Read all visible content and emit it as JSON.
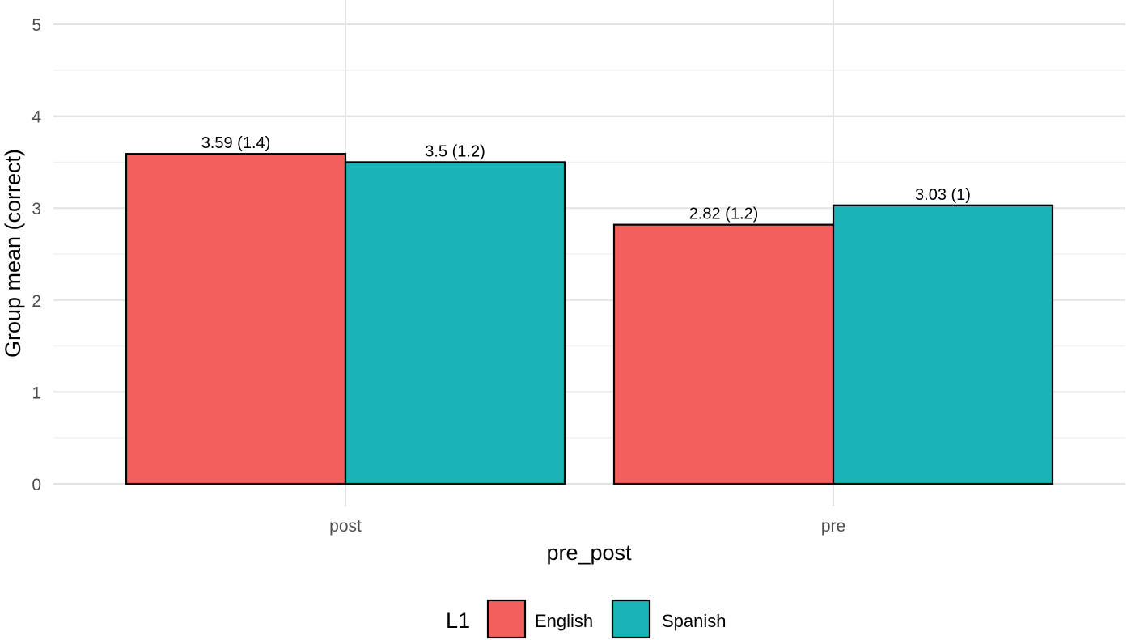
{
  "chart_data": {
    "type": "bar",
    "title": "",
    "xlabel": "pre_post",
    "ylabel": "Group mean (correct)",
    "categories": [
      "post",
      "pre"
    ],
    "ylim": [
      0,
      5
    ],
    "yticks": [
      0,
      1,
      2,
      3,
      4,
      5
    ],
    "grid": true,
    "legend_position": "bottom",
    "legend_title": "L1",
    "series": [
      {
        "name": "English",
        "color": "#F25F5C",
        "values": [
          3.59,
          2.82
        ],
        "labels": [
          "3.59 (1.4)",
          "2.82 (1.2)"
        ]
      },
      {
        "name": "Spanish",
        "color": "#1AB3B6",
        "values": [
          3.5,
          3.03
        ],
        "labels": [
          "3.5 (1.2)",
          "3.03 (1)"
        ]
      }
    ]
  }
}
